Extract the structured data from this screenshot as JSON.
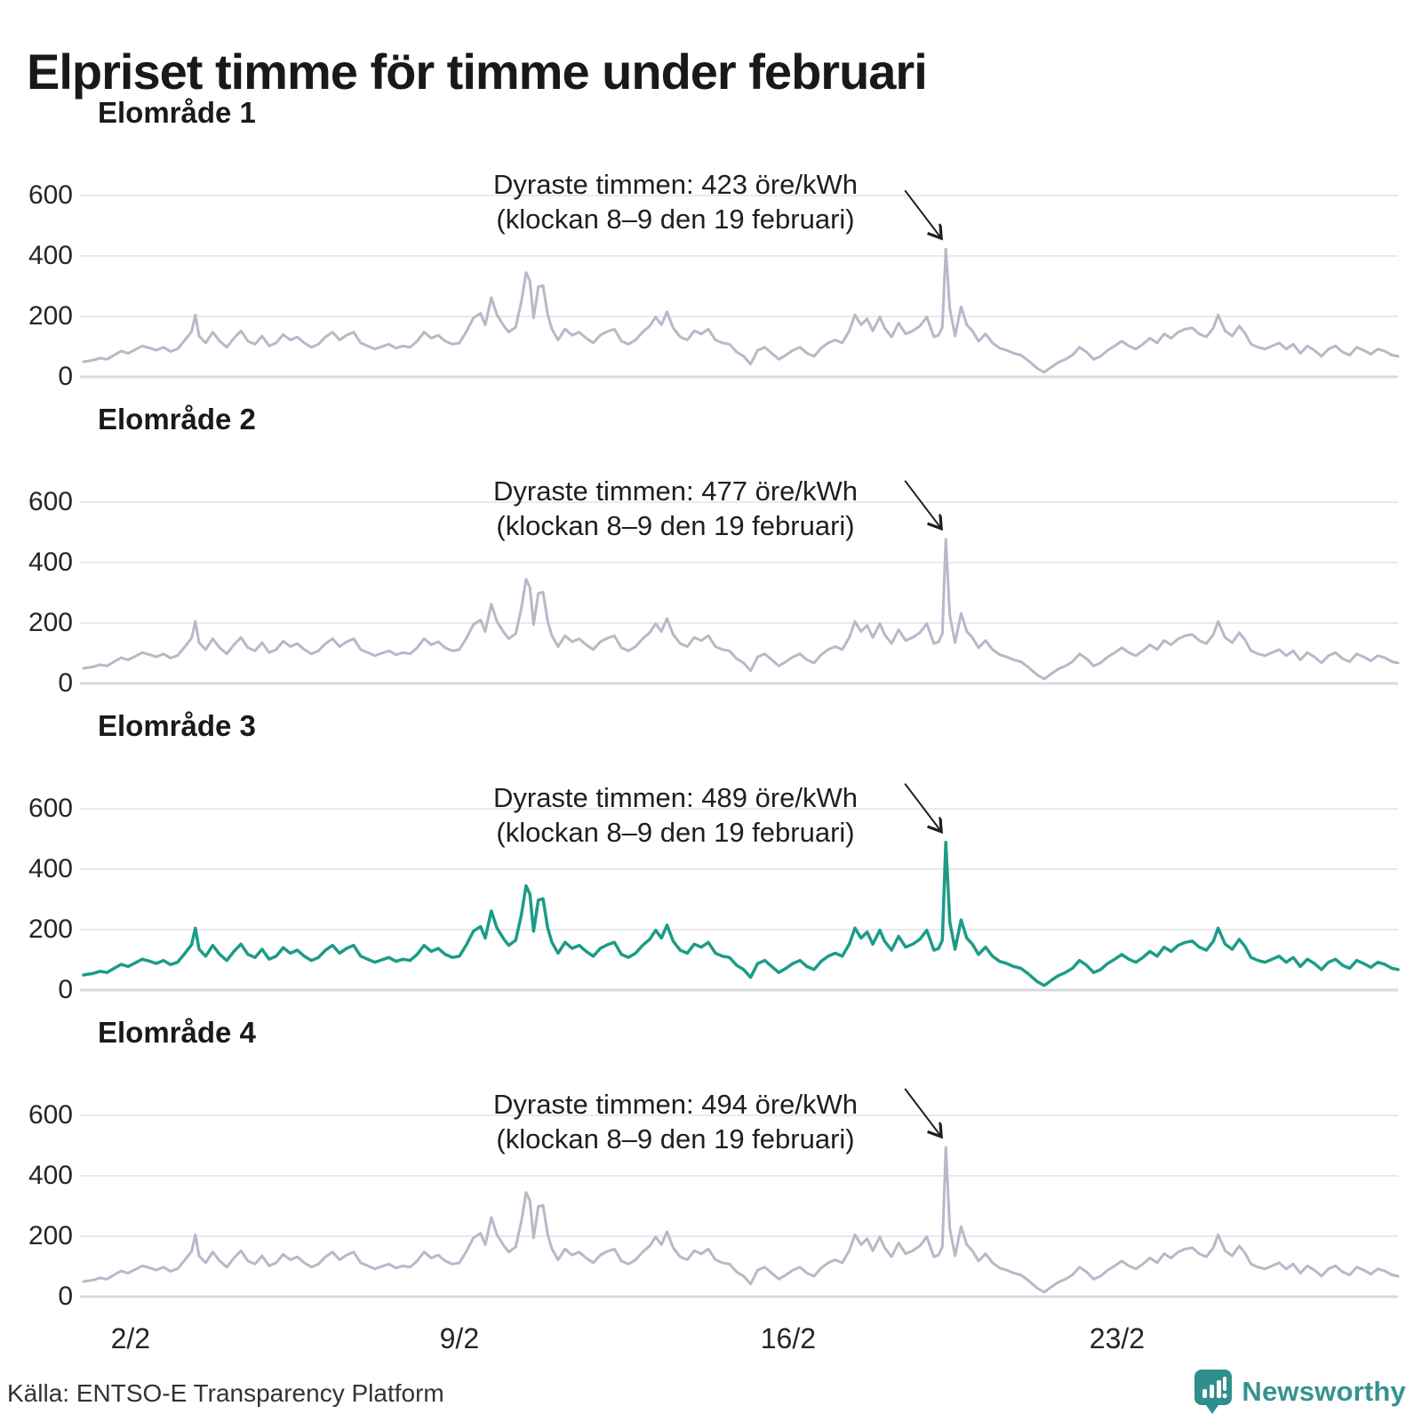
{
  "title": "Elpriset timme för timme under februari",
  "source": "Källa: ENTSO-E Transparency Platform",
  "logo": {
    "text": "Newsworthy",
    "icon": "speech-bubble-bar-chart",
    "brand_color": "#2f8f8c"
  },
  "colors": {
    "line_gray": "#bab7c8",
    "line_teal": "#1b9c88",
    "grid": "#e9e9ed",
    "baseline": "#d9d9de",
    "annotation_text": "#1f1f1f",
    "title_text": "#191919"
  },
  "chart_data": {
    "type": "line",
    "unit": "öre/kWh",
    "x_unit": "days since 1 februari 00:00",
    "grid": true,
    "ylim": [
      0,
      620
    ],
    "y_ticks": [
      600,
      400,
      200,
      0
    ],
    "x_ticks": [
      {
        "day": 1,
        "label": "2/2"
      },
      {
        "day": 8,
        "label": "9/2"
      },
      {
        "day": 15,
        "label": "16/2"
      },
      {
        "day": 22,
        "label": "23/2"
      }
    ],
    "peak_index": 130,
    "peak_time_label": "klockan 8–9 den 19 februari",
    "base_x": [
      0,
      0.2,
      0.35,
      0.5,
      0.65,
      0.8,
      0.95,
      1.1,
      1.25,
      1.4,
      1.55,
      1.7,
      1.85,
      2.0,
      2.15,
      2.3,
      2.38,
      2.46,
      2.6,
      2.75,
      2.9,
      3.05,
      3.2,
      3.35,
      3.5,
      3.65,
      3.8,
      3.95,
      4.1,
      4.25,
      4.4,
      4.55,
      4.7,
      4.85,
      5.0,
      5.15,
      5.3,
      5.45,
      5.6,
      5.75,
      5.9,
      6.05,
      6.2,
      6.35,
      6.5,
      6.65,
      6.8,
      6.95,
      7.1,
      7.25,
      7.4,
      7.55,
      7.7,
      7.85,
      8.0,
      8.15,
      8.3,
      8.45,
      8.55,
      8.68,
      8.8,
      8.95,
      9.05,
      9.2,
      9.32,
      9.42,
      9.5,
      9.58,
      9.68,
      9.78,
      9.88,
      9.97,
      10.1,
      10.25,
      10.4,
      10.55,
      10.7,
      10.85,
      11.0,
      11.15,
      11.3,
      11.45,
      11.6,
      11.75,
      11.9,
      12.05,
      12.18,
      12.3,
      12.42,
      12.55,
      12.7,
      12.85,
      13.0,
      13.15,
      13.3,
      13.45,
      13.6,
      13.75,
      13.9,
      14.05,
      14.2,
      14.35,
      14.5,
      14.65,
      14.8,
      14.95,
      15.1,
      15.25,
      15.4,
      15.55,
      15.7,
      15.85,
      16.0,
      16.15,
      16.3,
      16.42,
      16.55,
      16.68,
      16.8,
      16.95,
      17.05,
      17.2,
      17.35,
      17.5,
      17.65,
      17.8,
      17.95,
      18.1,
      18.2,
      18.28,
      18.354,
      18.44,
      18.55,
      18.68,
      18.8,
      18.92,
      19.05,
      19.2,
      19.35,
      19.5,
      19.65,
      19.8,
      19.95,
      20.1,
      20.3,
      20.45,
      20.6,
      20.75,
      20.9,
      21.05,
      21.2,
      21.35,
      21.5,
      21.65,
      21.8,
      21.95,
      22.1,
      22.25,
      22.4,
      22.55,
      22.7,
      22.85,
      23.0,
      23.15,
      23.3,
      23.45,
      23.6,
      23.75,
      23.9,
      24.05,
      24.15,
      24.3,
      24.45,
      24.6,
      24.72,
      24.85,
      25.0,
      25.15,
      25.3,
      25.45,
      25.6,
      25.75,
      25.9,
      26.05,
      26.2,
      26.35,
      26.5,
      26.65,
      26.8,
      26.95,
      27.1,
      27.25,
      27.4,
      27.55,
      27.7,
      27.85,
      28.0
    ],
    "base_y": [
      50,
      55,
      62,
      58,
      72,
      85,
      78,
      90,
      102,
      96,
      88,
      98,
      84,
      92,
      120,
      150,
      205,
      135,
      112,
      148,
      118,
      98,
      128,
      152,
      118,
      108,
      135,
      102,
      112,
      140,
      122,
      132,
      112,
      98,
      108,
      132,
      148,
      122,
      138,
      148,
      112,
      102,
      92,
      100,
      108,
      95,
      102,
      98,
      118,
      148,
      128,
      138,
      118,
      108,
      112,
      150,
      195,
      210,
      172,
      262,
      205,
      168,
      148,
      165,
      250,
      345,
      318,
      195,
      298,
      302,
      205,
      158,
      122,
      158,
      138,
      148,
      128,
      112,
      138,
      150,
      158,
      118,
      108,
      122,
      148,
      168,
      198,
      172,
      215,
      162,
      132,
      122,
      152,
      142,
      158,
      122,
      112,
      108,
      82,
      68,
      42,
      88,
      98,
      78,
      58,
      72,
      88,
      98,
      78,
      68,
      95,
      112,
      122,
      112,
      152,
      205,
      172,
      192,
      152,
      198,
      162,
      132,
      178,
      142,
      152,
      168,
      198,
      132,
      138,
      165,
      489,
      225,
      135,
      232,
      172,
      152,
      118,
      142,
      112,
      95,
      88,
      78,
      72,
      55,
      28,
      15,
      32,
      48,
      58,
      72,
      98,
      82,
      58,
      68,
      88,
      102,
      118,
      102,
      92,
      108,
      128,
      112,
      142,
      128,
      148,
      158,
      162,
      142,
      132,
      162,
      205,
      152,
      135,
      168,
      145,
      108,
      98,
      92,
      102,
      112,
      92,
      108,
      78,
      102,
      88,
      68,
      92,
      102,
      82,
      72,
      98,
      88,
      75,
      92,
      85,
      72,
      68
    ],
    "panels": [
      {
        "title": "Elområde 1",
        "peak_value": 423,
        "color": "#bab7c8",
        "annotation_line1": "Dyraste timmen: 423 öre/kWh",
        "annotation_line2": "(klockan 8–9 den 19 februari)"
      },
      {
        "title": "Elområde 2",
        "peak_value": 477,
        "color": "#bab7c8",
        "annotation_line1": "Dyraste timmen: 477 öre/kWh",
        "annotation_line2": "(klockan 8–9 den 19 februari)"
      },
      {
        "title": "Elområde 3",
        "peak_value": 489,
        "color": "#1b9c88",
        "annotation_line1": "Dyraste timmen: 489 öre/kWh",
        "annotation_line2": "(klockan 8–9 den 19 februari)"
      },
      {
        "title": "Elområde 4",
        "peak_value": 494,
        "color": "#bab7c8",
        "annotation_line1": "Dyraste timmen: 494 öre/kWh",
        "annotation_line2": "(klockan 8–9 den 19 februari)"
      }
    ]
  }
}
